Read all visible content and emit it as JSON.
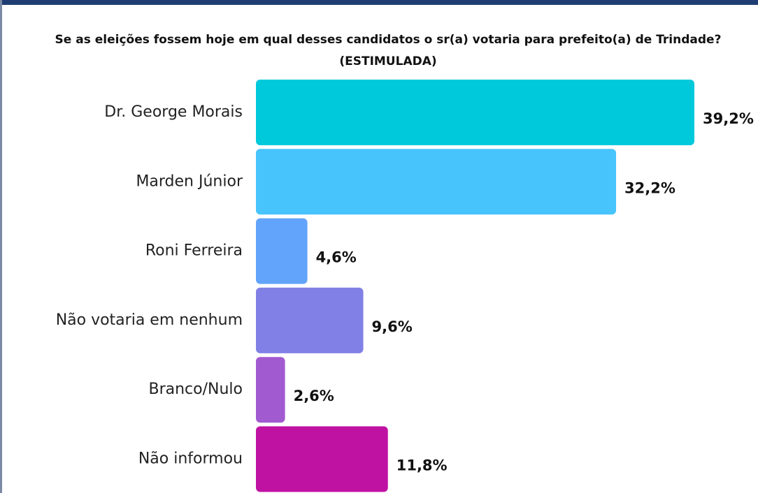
{
  "chart_data": {
    "type": "bar",
    "orientation": "horizontal",
    "title": "Se as eleições fossem hoje em qual desses candidatos o sr(a) votaria para prefeito(a) de Trindade? (ESTIMULADA)",
    "categories": [
      "Dr. George Morais",
      "Marden Júnior",
      "Roni Ferreira",
      "Não votaria em nenhum",
      "Branco/Nulo",
      "Não informou"
    ],
    "values": [
      39.2,
      32.2,
      4.6,
      9.6,
      2.6,
      11.8
    ],
    "value_labels": [
      "39,2%",
      "32,2%",
      "4,6%",
      "9,6%",
      "2,6%",
      "11,8%"
    ],
    "colors": [
      "#00c9dc",
      "#48c4fc",
      "#62a4fb",
      "#8080e6",
      "#a25ad0",
      "#c012a2"
    ]
  }
}
